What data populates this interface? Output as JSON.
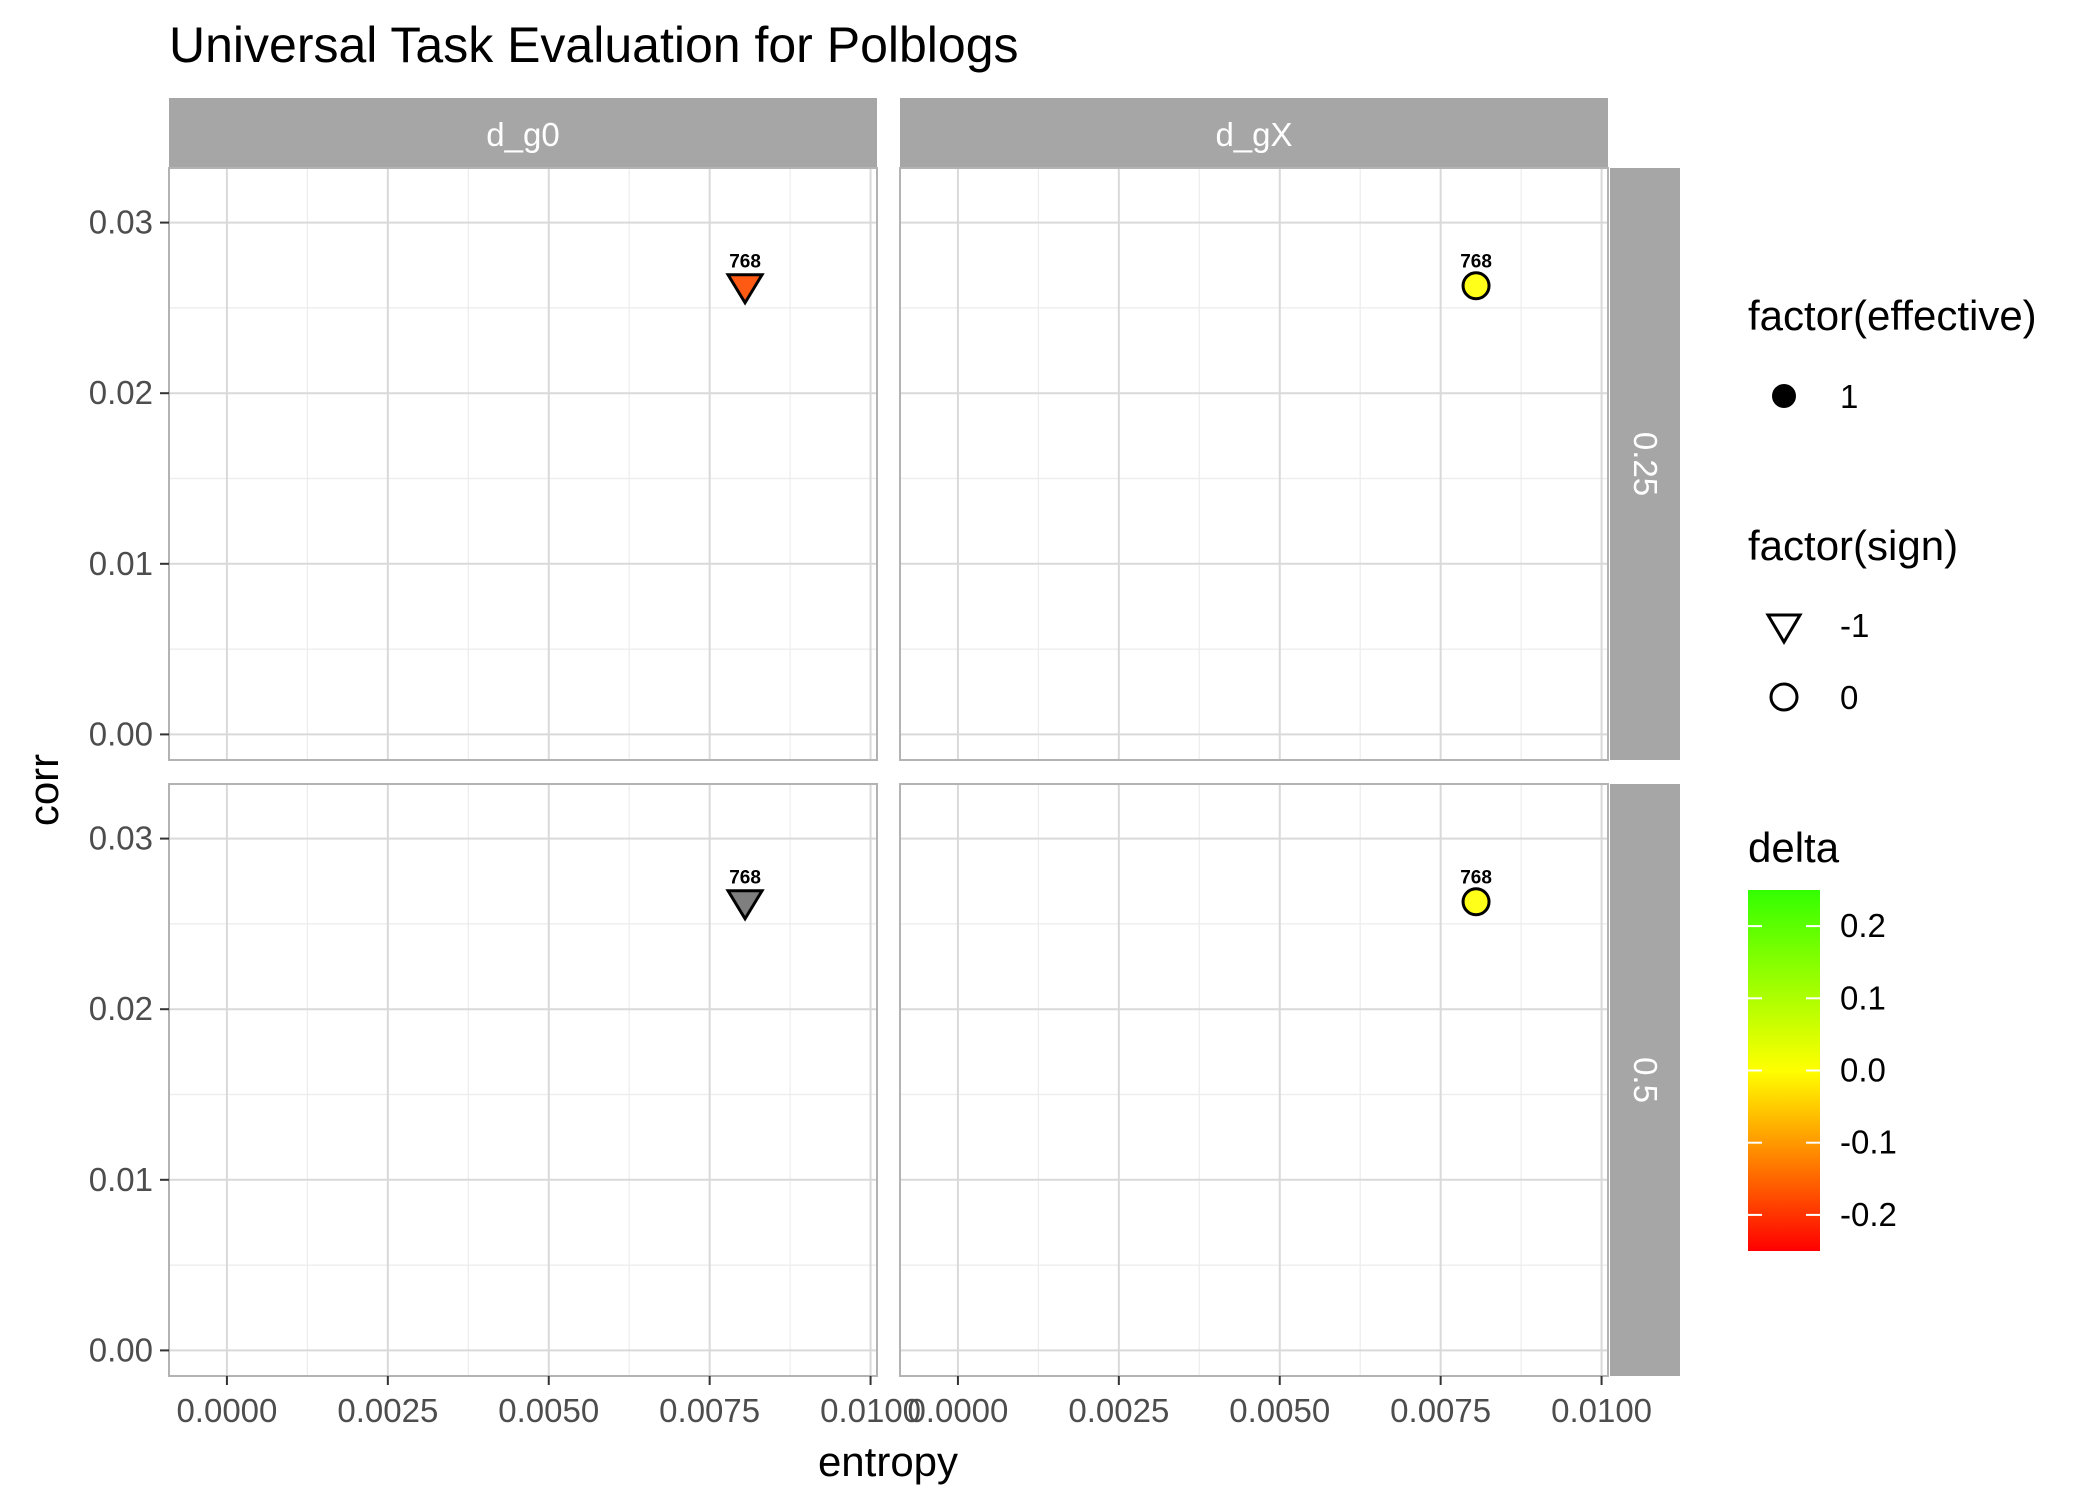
{
  "chart_data": {
    "type": "scatter",
    "title": "Universal Task Evaluation for Polblogs",
    "xlabel": "entropy",
    "ylabel": "corr",
    "xlim": [
      -0.0009,
      0.0101
    ],
    "ylim": [
      -0.0015,
      0.0332
    ],
    "x_ticks": [
      0.0,
      0.0025,
      0.005,
      0.0075,
      0.01
    ],
    "x_tick_labels": [
      "0.0000",
      "0.0025",
      "0.0050",
      "0.0075",
      "0.0100"
    ],
    "y_ticks": [
      0.0,
      0.01,
      0.02,
      0.03
    ],
    "y_tick_labels": [
      "0.00",
      "0.01",
      "0.02",
      "0.03"
    ],
    "grid": true,
    "facet_columns": [
      "d_g0",
      "d_gX"
    ],
    "facet_rows": [
      "0.25",
      "0.5"
    ],
    "panels": [
      {
        "col": "d_g0",
        "row": "0.25",
        "points": [
          {
            "x": 0.00805,
            "y": 0.0263,
            "sign": -1,
            "effective": 1,
            "delta": -0.15,
            "fill": "#ff5a14",
            "label": "768"
          }
        ]
      },
      {
        "col": "d_gX",
        "row": "0.25",
        "points": [
          {
            "x": 0.00805,
            "y": 0.0263,
            "sign": 0,
            "effective": 1,
            "delta": 0.0,
            "fill": "#ffff1a",
            "label": "768"
          }
        ]
      },
      {
        "col": "d_g0",
        "row": "0.5",
        "points": [
          {
            "x": 0.00805,
            "y": 0.0263,
            "sign": -1,
            "effective": 1,
            "delta": null,
            "fill": "#7f7f7f",
            "label": "768"
          }
        ]
      },
      {
        "col": "d_gX",
        "row": "0.5",
        "points": [
          {
            "x": 0.00805,
            "y": 0.0263,
            "sign": 0,
            "effective": 1,
            "delta": 0.0,
            "fill": "#ffff1a",
            "label": "768"
          }
        ]
      }
    ],
    "legends": {
      "placement": "right",
      "effective": {
        "title": "factor(effective)",
        "items": [
          {
            "label": "1",
            "shape": "filled-circle"
          }
        ]
      },
      "sign": {
        "title": "factor(sign)",
        "items": [
          {
            "label": "-1",
            "shape": "triangle-down"
          },
          {
            "label": "0",
            "shape": "circle"
          }
        ]
      },
      "delta": {
        "title": "delta",
        "range": [
          -0.25,
          0.25
        ],
        "colors": [
          "#ff0000",
          "#ffff00",
          "#33ff00"
        ],
        "ticks": [
          0.2,
          0.1,
          0.0,
          -0.1,
          -0.2
        ],
        "tick_labels": [
          "0.2",
          "0.1",
          "0.0",
          "-0.1",
          "-0.2"
        ]
      }
    }
  }
}
